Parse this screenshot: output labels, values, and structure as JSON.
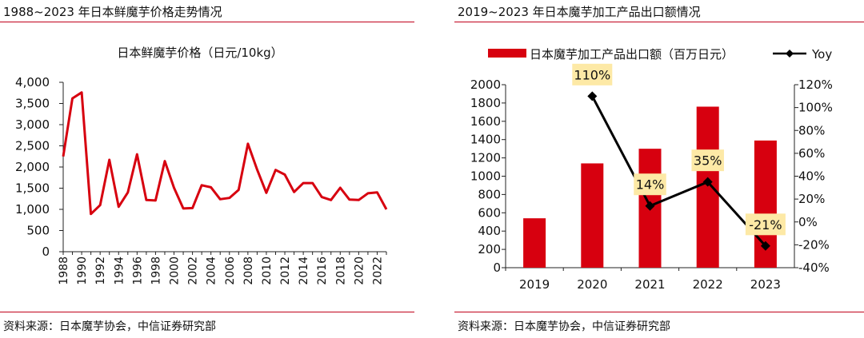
{
  "left": {
    "heading": "1988~2023 年日本鲜魔芋价格走势情况",
    "source": "资料来源：日本魔芋协会，中信证券研究部"
  },
  "right": {
    "heading": "2019~2023 年日本魔芋加工产品出口额情况",
    "source": "资料来源：日本魔芋协会，中信证券研究部"
  },
  "colors": {
    "accent": "#d7000f",
    "line": "#000000",
    "label_bg": "#fde9a6"
  },
  "chart_data": [
    {
      "type": "line",
      "title": "日本鲜魔芋价格（日元/10kg）",
      "x": [
        1988,
        1989,
        1990,
        1991,
        1992,
        1993,
        1994,
        1995,
        1996,
        1997,
        1998,
        1999,
        2000,
        2001,
        2002,
        2003,
        2004,
        2005,
        2006,
        2007,
        2008,
        2009,
        2010,
        2011,
        2012,
        2013,
        2014,
        2015,
        2016,
        2017,
        2018,
        2019,
        2020,
        2021,
        2022,
        2023
      ],
      "series": [
        {
          "values": [
            2250,
            3620,
            3760,
            890,
            1100,
            2170,
            1060,
            1400,
            2300,
            1220,
            1210,
            2140,
            1510,
            1020,
            1030,
            1570,
            1520,
            1240,
            1270,
            1460,
            2550,
            1940,
            1390,
            1930,
            1820,
            1410,
            1620,
            1620,
            1290,
            1220,
            1510,
            1230,
            1220,
            1380,
            1400,
            1000
          ]
        }
      ],
      "ylim": [
        0,
        4000
      ],
      "yticks": [
        "0",
        "500",
        "1,000",
        "1,500",
        "2,000",
        "2,500",
        "3,000",
        "3,500",
        "4,000"
      ],
      "xtick_labels": [
        "1988",
        "1990",
        "1992",
        "1994",
        "1996",
        "1998",
        "2000",
        "2002",
        "2004",
        "2006",
        "2008",
        "2010",
        "2012",
        "2014",
        "2016",
        "2018",
        "2020",
        "2022"
      ]
    },
    {
      "type": "bar",
      "categories": [
        "2019",
        "2020",
        "2021",
        "2022",
        "2023"
      ],
      "series": [
        {
          "name": "日本魔芋加工产品出口额（百万日元）",
          "type": "bar",
          "axis": "left",
          "values": [
            540,
            1140,
            1300,
            1760,
            1390
          ]
        },
        {
          "name": "Yoy",
          "type": "line",
          "axis": "right",
          "values": [
            null,
            110,
            14,
            35,
            -21
          ],
          "labels": [
            "",
            "110%",
            "14%",
            "35%",
            "-21%"
          ]
        }
      ],
      "ylim": [
        0,
        2000
      ],
      "y2lim": [
        -40,
        120
      ],
      "yticks": [
        "0",
        "200",
        "400",
        "600",
        "800",
        "1000",
        "1200",
        "1400",
        "1600",
        "1800",
        "2000"
      ],
      "y2ticks": [
        "-40%",
        "-20%",
        "0%",
        "20%",
        "40%",
        "60%",
        "80%",
        "100%",
        "120%"
      ]
    }
  ]
}
